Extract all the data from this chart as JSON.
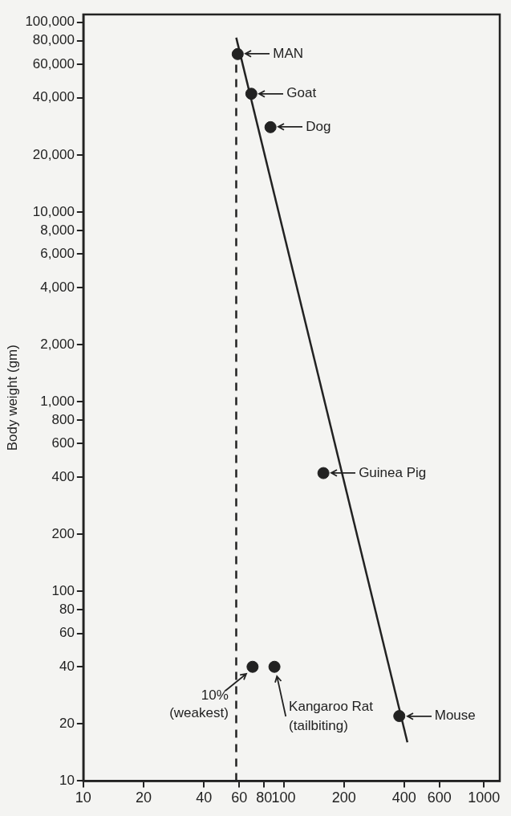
{
  "chart_data": {
    "type": "scatter",
    "ylabel": "Body weight (gm)",
    "log": "xy",
    "grid": false,
    "legend": false,
    "marker": "circle",
    "xlim": [
      10,
      1200
    ],
    "xticks": [
      10,
      20,
      40,
      60,
      80,
      100,
      200,
      400,
      600,
      1000
    ],
    "ylim": [
      10,
      110000
    ],
    "yticks": [
      10,
      20,
      40,
      60,
      80,
      100,
      200,
      400,
      600,
      800,
      {
        "value": 1000,
        "label": "1,000"
      },
      {
        "value": 2000,
        "label": "2,000"
      },
      {
        "value": 4000,
        "label": "4,000"
      },
      {
        "value": 6000,
        "label": "6,000"
      },
      {
        "value": 8000,
        "label": "8,000"
      },
      {
        "value": 10000,
        "label": "10,000"
      },
      {
        "value": 20000,
        "label": "20,000"
      },
      {
        "value": 40000,
        "label": "40,000"
      },
      {
        "value": 60000,
        "label": "60,000"
      },
      {
        "value": 80000,
        "label": "80,000"
      },
      {
        "value": 100000,
        "label": "100,000"
      }
    ],
    "series": [
      {
        "color": "#222222",
        "x": [
          59,
          69,
          86,
          158,
          378,
          90,
          70
        ],
        "values": [
          68000,
          42000,
          28000,
          420,
          22,
          40,
          40
        ]
      },
      {
        "type": "line",
        "color": "#222222",
        "line_style": "solid",
        "marker": "none",
        "x": [
          58,
          415
        ],
        "values": [
          83000,
          16
        ]
      }
    ],
    "ref_lines": [
      {
        "axis": "x",
        "value": 58,
        "color": "#222222",
        "line_style": "dashed"
      }
    ],
    "annotations": [
      {
        "text": "MAN",
        "x": 59,
        "y": 68000
      },
      {
        "text": "Goat",
        "x": 69,
        "y": 42000
      },
      {
        "text": "Dog",
        "x": 86,
        "y": 28000
      },
      {
        "text": "Guinea Pig",
        "x": 158,
        "y": 420
      },
      {
        "text": "Mouse",
        "x": 378,
        "y": 22
      },
      {
        "text": "Kangaroo Rat\n(tailbiting)",
        "x": 90,
        "y": 40
      },
      {
        "text": "10%\n(weakest)",
        "x": 70,
        "y": 40
      }
    ]
  }
}
